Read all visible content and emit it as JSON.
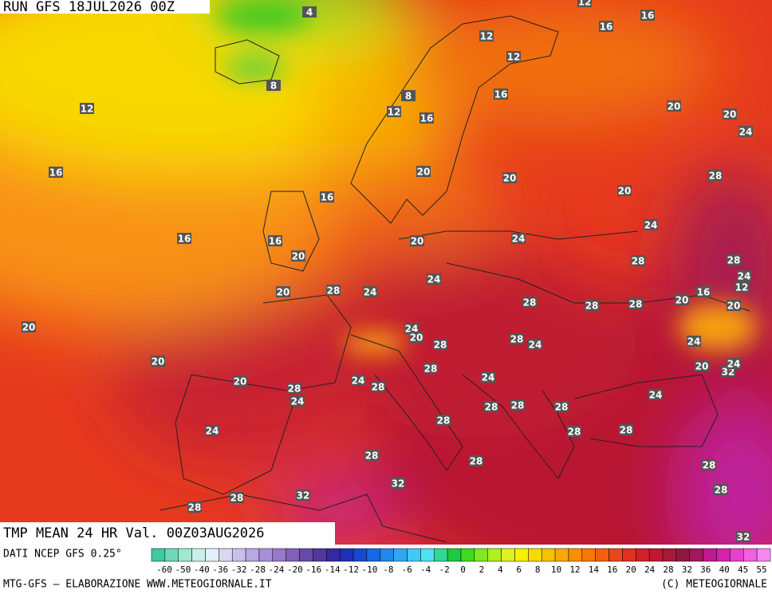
{
  "header": {
    "run": "RUN GFS 18JUL2026 00Z",
    "title": "TMP MEAN 24 HR Val. 00Z03AUG2026"
  },
  "footer": {
    "source": "DATI NCEP GFS 0.25°",
    "credit": "MTG-GFS — ELABORAZIONE WWW.METEOGIORNALE.IT",
    "copyright": "(C) METEOGIORNALE"
  },
  "colorbar": {
    "labels": [
      -60,
      -50,
      -40,
      -36,
      -32,
      -28,
      -24,
      -20,
      -16,
      -14,
      -12,
      -10,
      -8,
      -6,
      -4,
      -2,
      0,
      2,
      4,
      6,
      8,
      10,
      12,
      14,
      16,
      20,
      24,
      28,
      32,
      36,
      40,
      45,
      55
    ],
    "colors": [
      "#40c8a0",
      "#70d8b8",
      "#a0e8d0",
      "#c8f0e8",
      "#e0f0f8",
      "#d8d8f0",
      "#c8c0e8",
      "#b8a8e0",
      "#a890d8",
      "#9878c8",
      "#8060b8",
      "#6848a8",
      "#503898",
      "#3828a0",
      "#2030b8",
      "#1848d0",
      "#1868e0",
      "#2088e8",
      "#30a8f0",
      "#40c8f8",
      "#50e0f0",
      "#30d890",
      "#20c840",
      "#40d820",
      "#80e820",
      "#b0f020",
      "#e0f020",
      "#f8f000",
      "#f8d800",
      "#f8c000",
      "#f8a800",
      "#f89000",
      "#f87800",
      "#f06010",
      "#e84818",
      "#e03020",
      "#d02028",
      "#c01830",
      "#a81838",
      "#901840",
      "#a01860",
      "#c01890",
      "#d820b0",
      "#e840d0",
      "#f060e0",
      "#f888f0"
    ]
  },
  "map_labels": [
    12,
    16,
    4,
    16,
    12,
    12,
    8,
    12,
    8,
    12,
    16,
    16,
    20,
    20,
    24,
    16,
    20,
    20,
    20,
    28,
    16,
    24,
    16,
    16,
    20,
    24,
    20,
    28,
    28,
    24,
    12,
    16,
    20,
    20,
    20,
    28,
    24,
    24,
    28,
    28,
    28,
    20,
    24,
    20,
    28,
    28,
    24,
    20,
    28,
    24,
    24,
    20,
    32,
    24,
    20,
    24,
    28,
    28,
    24,
    24,
    28,
    28,
    28,
    28,
    24,
    28,
    28,
    28,
    28,
    28,
    32,
    28,
    28,
    28,
    32,
    32
  ]
}
